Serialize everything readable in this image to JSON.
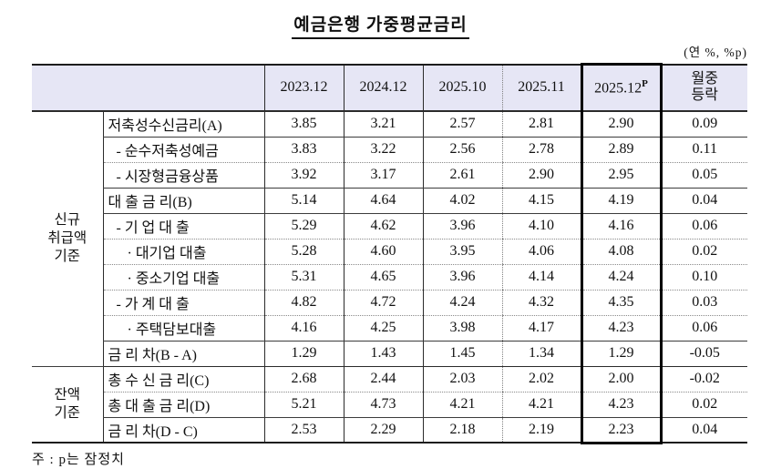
{
  "title": "예금은행 가중평균금리",
  "unit_note": "(연 %, %p)",
  "footnote": "주 : p는 잠정치",
  "colors": {
    "header_bg": "#e6e6f5",
    "line": "#2b2b2b",
    "dotted_line": "#808080",
    "highlight_border": "#000000"
  },
  "table": {
    "period_headers": [
      "2023.12",
      "2024.12",
      "2025.10",
      "2025.11"
    ],
    "current_period": {
      "label": "2025.12",
      "sup": "P"
    },
    "change_header": "월중\n등락",
    "groups": [
      {
        "label": "신규\n취급액\n기준"
      },
      {
        "label": "잔액\n기준"
      }
    ],
    "rows": [
      {
        "label": "저축성수신금리(A)",
        "values": [
          "3.85",
          "3.21",
          "2.57",
          "2.81",
          "2.90",
          "0.09"
        ]
      },
      {
        "label": "- 순수저축성예금",
        "values": [
          "3.83",
          "3.22",
          "2.56",
          "2.78",
          "2.89",
          "0.11"
        ]
      },
      {
        "label": "- 시장형금융상품",
        "values": [
          "3.92",
          "3.17",
          "2.61",
          "2.90",
          "2.95",
          "0.05"
        ]
      },
      {
        "label": "대 출 금 리(B)",
        "values": [
          "5.14",
          "4.64",
          "4.02",
          "4.15",
          "4.19",
          "0.04"
        ]
      },
      {
        "label": "- 기 업 대 출",
        "values": [
          "5.29",
          "4.62",
          "3.96",
          "4.10",
          "4.16",
          "0.06"
        ]
      },
      {
        "label": "· 대기업 대출",
        "values": [
          "5.28",
          "4.60",
          "3.95",
          "4.06",
          "4.08",
          "0.02"
        ]
      },
      {
        "label": "· 중소기업 대출",
        "values": [
          "5.31",
          "4.65",
          "3.96",
          "4.14",
          "4.24",
          "0.10"
        ]
      },
      {
        "label": "- 가 계 대 출",
        "values": [
          "4.82",
          "4.72",
          "4.24",
          "4.32",
          "4.35",
          "0.03"
        ]
      },
      {
        "label": "· 주택담보대출",
        "values": [
          "4.16",
          "4.25",
          "3.98",
          "4.17",
          "4.23",
          "0.06"
        ]
      },
      {
        "label": "금 리 차(B - A)",
        "values": [
          "1.29",
          "1.43",
          "1.45",
          "1.34",
          "1.29",
          "-0.05"
        ]
      },
      {
        "label": "총 수 신 금 리(C)",
        "values": [
          "2.68",
          "2.44",
          "2.03",
          "2.02",
          "2.00",
          "-0.02"
        ]
      },
      {
        "label": "총 대 출 금 리(D)",
        "values": [
          "5.21",
          "4.73",
          "4.21",
          "4.21",
          "4.23",
          "0.02"
        ]
      },
      {
        "label": "금 리 차(D - C)",
        "values": [
          "2.53",
          "2.29",
          "2.18",
          "2.19",
          "2.23",
          "0.04"
        ]
      }
    ]
  }
}
